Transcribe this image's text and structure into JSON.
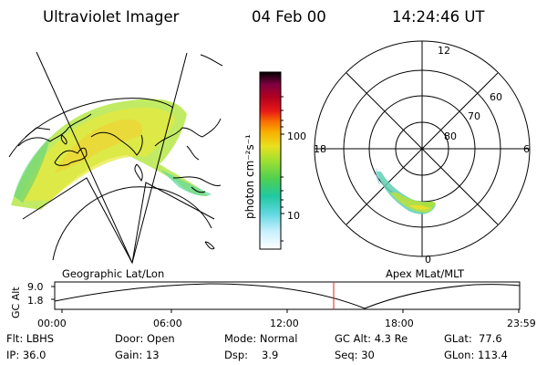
{
  "header": {
    "instrument": "Ultraviolet Imager",
    "date": "04 Feb 00",
    "time": "14:24:46 UT"
  },
  "colorbar": {
    "unit_label": "photon cm⁻²s⁻¹",
    "ticks": [
      "100",
      "10"
    ],
    "scale": "log",
    "colors": [
      "#ffffff",
      "#c8f0ff",
      "#60d8e0",
      "#20c8a0",
      "#50d050",
      "#a0e030",
      "#e8e020",
      "#f8b000",
      "#f87000",
      "#e81818",
      "#b00020",
      "#800040",
      "#000000"
    ]
  },
  "geo_panel": {
    "label": "Geographic Lat/Lon"
  },
  "apex_panel": {
    "label": "Apex MLat/MLT",
    "mlt_labels": {
      "top": "12",
      "left": "18",
      "right": "6",
      "bottom": "0"
    },
    "lat_labels": [
      "60",
      "70",
      "80"
    ]
  },
  "altitude_plot": {
    "ylabel": "GC Alt",
    "yticks": [
      "9.0",
      "1.8"
    ],
    "xticks": [
      "00:00",
      "06:00",
      "12:00",
      "18:00",
      "23:59"
    ],
    "current_time_fraction": 0.6
  },
  "info": {
    "filter": "Flt: LBHS",
    "ip": "IP: 36.0",
    "door": "Door: Open",
    "gain": "Gain: 13",
    "mode": "Mode: Normal",
    "dsp_label": "Dsp:",
    "dsp_value": "3.9",
    "gc_alt": "GC Alt: 4.3 Re",
    "seq": "Seq: 30",
    "glat": "GLat:  77.6",
    "glon": "GLon: 113.4"
  }
}
